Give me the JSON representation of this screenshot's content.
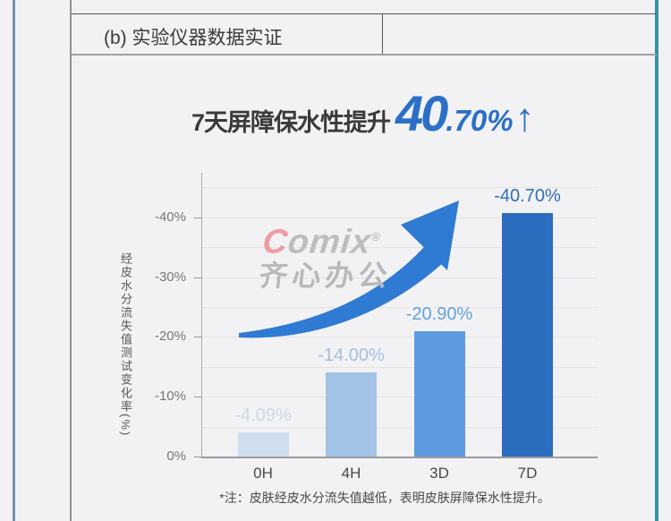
{
  "page": {
    "header": {
      "label": "(b) 实验仪器数据实证"
    },
    "title": {
      "prefix": "7天屏障保水性提升",
      "big_value": "40",
      "small_value": ".70%",
      "arrow": "↑"
    },
    "watermark": {
      "brand_c": "C",
      "brand_rest": "omix",
      "registered": "®",
      "brand_cn": "齐心办公"
    },
    "footnote": "*注：皮肤经皮水分流失值越低，表明皮肤屏障保水性提升。"
  },
  "chart_data": {
    "type": "bar",
    "title": "7天屏障保水性提升 40.70%↑",
    "categories": [
      "0H",
      "4H",
      "3D",
      "7D"
    ],
    "values": [
      -4.09,
      -14.0,
      -20.9,
      -40.7
    ],
    "data_labels": [
      "-4.09%",
      "-14.00%",
      "-20.90%",
      "-40.70%"
    ],
    "bar_colors": [
      "#cfdeef",
      "#a2c2e6",
      "#5e9ae0",
      "#2b6dbf"
    ],
    "label_colors": [
      "#ccd8e8",
      "#a6bedd",
      "#64a0de",
      "#306fbd"
    ],
    "xlabel": "",
    "ylabel": "经皮水分流失值测试变化率(%)",
    "y_ticks": [
      "0%",
      "-10%",
      "-20%",
      "-30%",
      "-40%"
    ],
    "ylim": [
      0,
      -45
    ],
    "grid": true,
    "legend": "none",
    "annotation": "upward growth arrow across bars"
  },
  "colors": {
    "background": "#f2f2f4",
    "accent_blue": "#2b70c6",
    "arrow_blue": "#2f7ad2",
    "left_border_blue": "#7191b5",
    "right_border_teal": "#3095a8",
    "axis_gray": "#9b9b9d",
    "gridline": "#e3e3e1"
  }
}
